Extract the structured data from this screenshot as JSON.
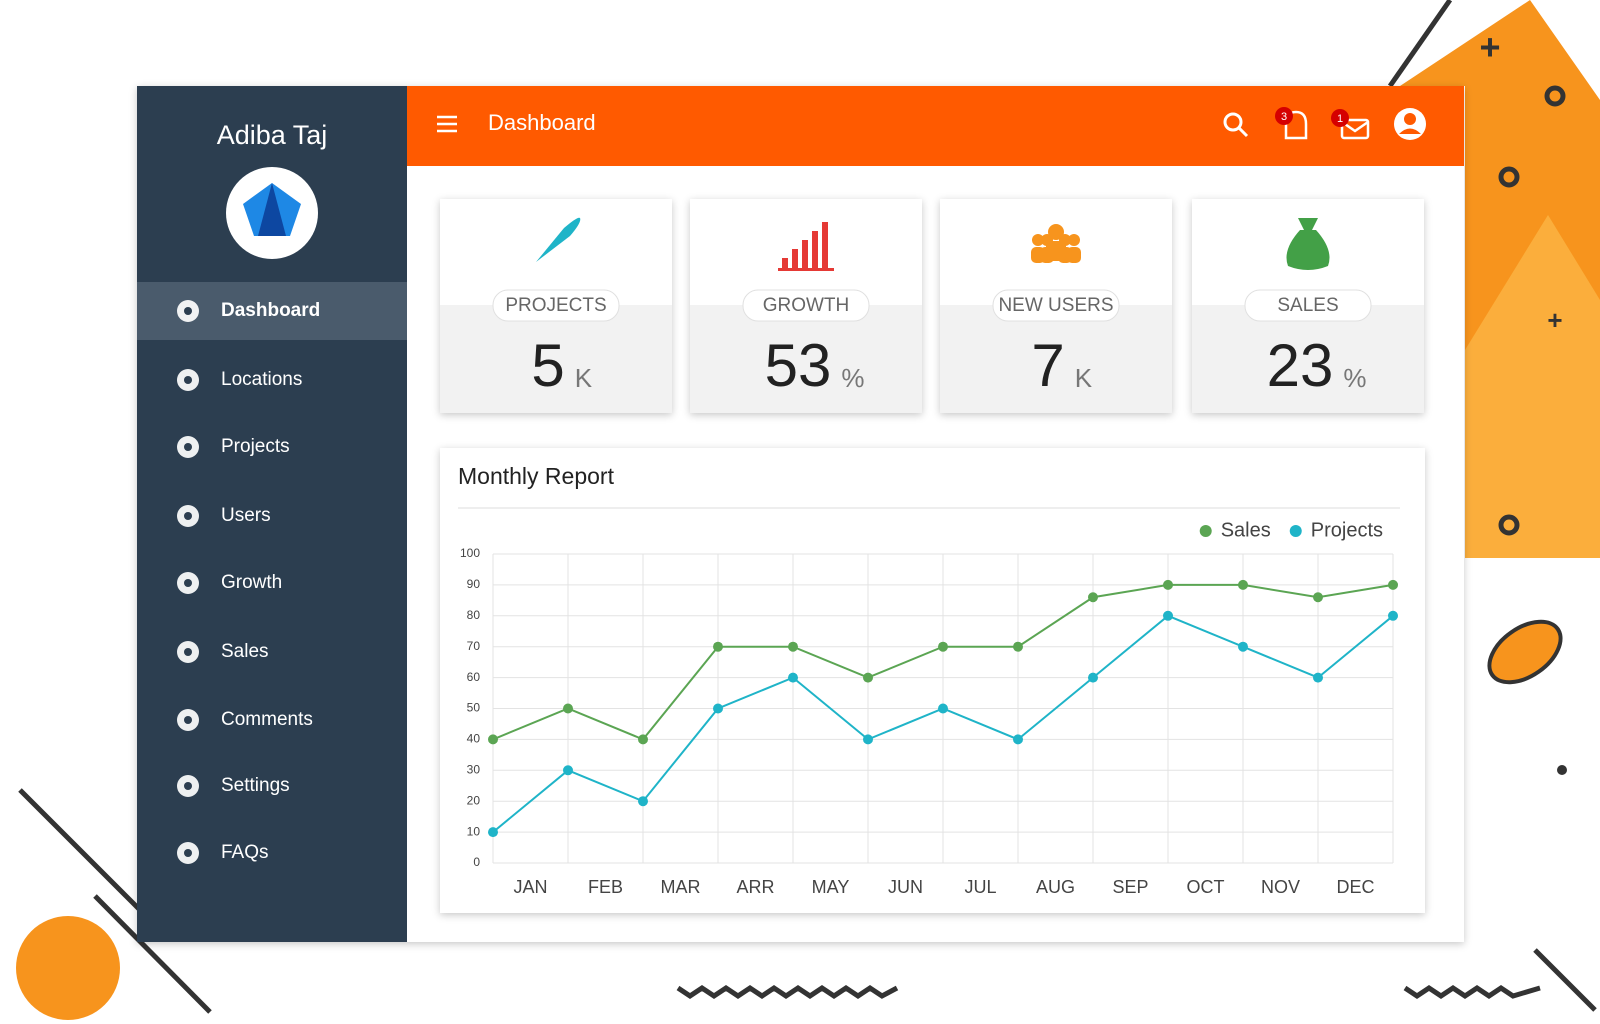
{
  "sidebar": {
    "user_name": "Adiba Taj",
    "menu": [
      "Dashboard",
      "Locations",
      "Projects",
      "Users",
      "Growth",
      "Sales",
      "Comments",
      "Settings",
      "FAQs"
    ]
  },
  "header": {
    "title": "Dashboard",
    "notification_badge": "3",
    "mail_badge": "1"
  },
  "cards": [
    {
      "label": "PROJECTS",
      "value": 5,
      "unit": "K"
    },
    {
      "label": "GROWTH",
      "value": 53,
      "unit": "%"
    },
    {
      "label": "NEW USERS",
      "value": 7,
      "unit": "K"
    },
    {
      "label": "SALES",
      "value": 23,
      "unit": "%"
    }
  ],
  "chart_data": {
    "type": "line",
    "title": "Monthly Report",
    "categories": [
      "JAN",
      "FEB",
      "MAR",
      "ARR",
      "MAY",
      "JUN",
      "JUL",
      "AUG",
      "SEP",
      "OCT",
      "NOV",
      "DEC",
      null
    ],
    "series": [
      {
        "name": "Sales",
        "color": "#5ba553",
        "values": [
          40,
          50,
          40,
          70,
          70,
          60,
          70,
          70,
          86,
          90,
          90,
          86,
          90
        ]
      },
      {
        "name": "Projects",
        "color": "#1fb4c8",
        "values": [
          10,
          30,
          20,
          50,
          60,
          40,
          50,
          40,
          60,
          80,
          70,
          60,
          80
        ]
      }
    ],
    "ylim": [
      0,
      100
    ],
    "yticks": [
      0,
      10,
      20,
      30,
      40,
      50,
      60,
      70,
      80,
      90,
      100
    ],
    "grid": true,
    "legend": "top-right"
  }
}
